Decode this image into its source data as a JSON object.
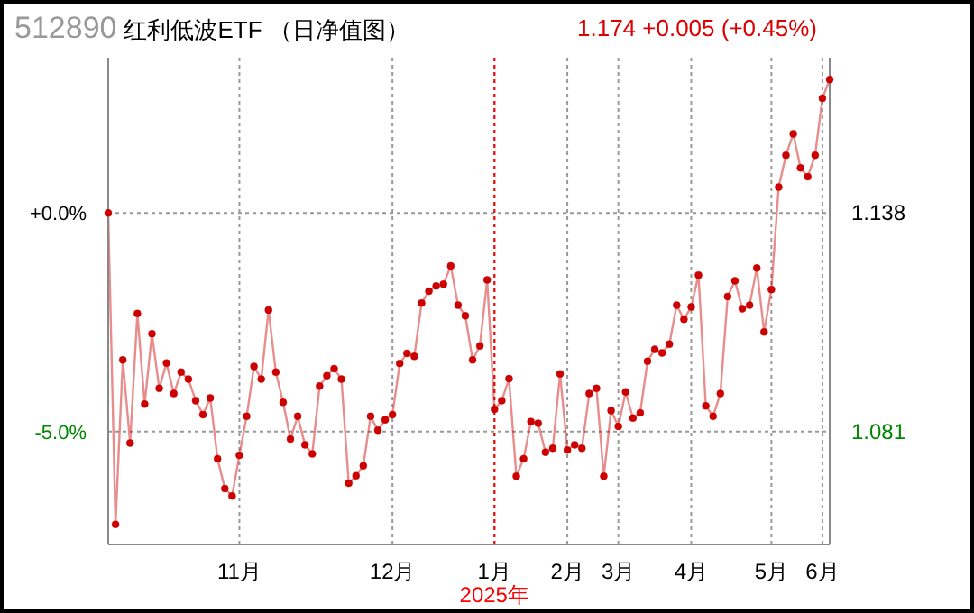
{
  "chart_data": {
    "type": "line",
    "title": "512890 红利低波ETF （日净值图）",
    "subtitle": "1.174 +0.005 (+0.45%)",
    "categories": [
      null,
      null,
      null,
      null,
      null,
      null,
      null,
      null,
      null,
      null,
      null,
      null,
      null,
      null,
      null,
      null,
      null,
      null,
      "11月",
      null,
      null,
      null,
      null,
      null,
      null,
      null,
      null,
      null,
      null,
      null,
      null,
      null,
      null,
      null,
      null,
      null,
      null,
      null,
      null,
      "12月",
      null,
      null,
      null,
      null,
      null,
      null,
      null,
      null,
      null,
      null,
      null,
      null,
      null,
      "1月",
      null,
      null,
      null,
      null,
      null,
      null,
      null,
      null,
      null,
      "2月",
      null,
      null,
      null,
      null,
      null,
      null,
      "3月",
      null,
      null,
      null,
      null,
      null,
      null,
      null,
      null,
      null,
      "4月",
      null,
      null,
      null,
      null,
      null,
      null,
      null,
      null,
      null,
      null,
      "5月",
      null,
      null,
      null,
      null,
      null,
      null,
      "6月",
      null
    ],
    "series": [
      {
        "color": "#cc0000",
        "values": [
          0,
          -7.12,
          -3.36,
          -5.26,
          -2.3,
          -4.37,
          -2.76,
          -4.01,
          -3.43,
          -4.13,
          -3.64,
          -3.8,
          -4.29,
          -4.61,
          -4.23,
          -5.62,
          -6.3,
          -6.47,
          -5.54,
          -4.65,
          -3.51,
          -3.8,
          -2.22,
          -3.64,
          -4.33,
          -5.17,
          -4.65,
          -5.3,
          -5.51,
          -3.96,
          -3.72,
          -3.56,
          -3.8,
          -6.18,
          -6.01,
          -5.78,
          -4.65,
          -4.97,
          -4.73,
          -4.61,
          -3.44,
          -3.21,
          -3.28,
          -2.06,
          -1.79,
          -1.67,
          -1.63,
          -1.21,
          -2.11,
          -2.35,
          -3.36,
          -3.04,
          -1.53,
          -4.49,
          -4.29,
          -3.79,
          -6.02,
          -5.62,
          -4.77,
          -4.81,
          -5.47,
          -5.38,
          -3.68,
          -5.42,
          -5.3,
          -5.38,
          -4.13,
          -4.01,
          -6.02,
          -4.52,
          -4.88,
          -4.09,
          -4.69,
          -4.57,
          -3.39,
          -3.12,
          -3.2,
          -3.0,
          -2.11,
          -2.43,
          -2.15,
          -1.42,
          -4.41,
          -4.65,
          -4.13,
          -1.91,
          -1.55,
          -2.19,
          -2.11,
          -1.26,
          -2.72,
          -1.75,
          0.59,
          1.32,
          1.81,
          1.03,
          0.83,
          1.32,
          2.62,
          3.05
        ]
      }
    ],
    "ylim": [
      -7.58,
      3.55
    ],
    "yticks": [
      {
        "value": 0,
        "label": "+0.0%"
      },
      {
        "value": -5,
        "label": "-5.0%"
      }
    ],
    "y2lim": [
      1.0515,
      1.1785
    ],
    "y2ticks": [
      1.138,
      1.081
    ],
    "ref_lines": [
      {
        "axis": "x",
        "value": "1月",
        "label": "2025年",
        "color": "#ff0000",
        "line_style": "dotted"
      }
    ],
    "grid": true,
    "marker": "circle",
    "line_style": "solid",
    "legend": false
  }
}
